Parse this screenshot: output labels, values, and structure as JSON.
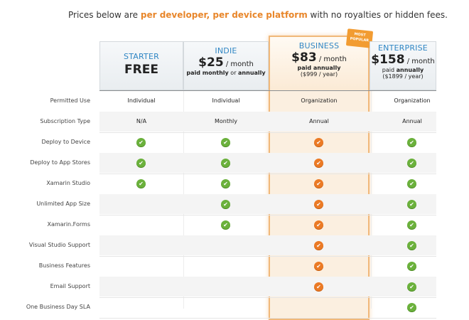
{
  "intro": {
    "pre": "Prices below are ",
    "highlight": "per developer, per device platform",
    "post": " with no royalties or hidden fees."
  },
  "plans": {
    "starter": {
      "name": "STARTER",
      "price": "FREE"
    },
    "indie": {
      "name": "INDIE",
      "price": "$25",
      "per": " / month",
      "billing_a": "paid monthly",
      "billing_or": " or ",
      "billing_b": "annually"
    },
    "business": {
      "name": "BUSINESS",
      "price": "$83",
      "per": " / month",
      "billing": "paid annually",
      "billing_sub": "($999 / year)",
      "ribbon": "MOST POPULAR"
    },
    "enterprise": {
      "name": "ENTERPRISE",
      "price": "$158",
      "per": " / month",
      "billing_pre": "paid ",
      "billing_b": "annually",
      "billing_sub": "($1899 / year)"
    }
  },
  "rows": [
    {
      "label": "Permitted Use",
      "starter": "Individual",
      "indie": "Individual",
      "business": "Organization",
      "enterprise": "Organization"
    },
    {
      "label": "Subscription Type",
      "starter": "N/A",
      "indie": "Monthly",
      "business": "Annual",
      "enterprise": "Annual"
    },
    {
      "label": "Deploy to Device",
      "starter": true,
      "indie": true,
      "business": true,
      "enterprise": true
    },
    {
      "label": "Deploy to App Stores",
      "starter": true,
      "indie": true,
      "business": true,
      "enterprise": true
    },
    {
      "label": "Xamarin Studio",
      "starter": true,
      "indie": true,
      "business": true,
      "enterprise": true
    },
    {
      "label": "Unlimited App Size",
      "starter": false,
      "indie": true,
      "business": true,
      "enterprise": true
    },
    {
      "label": "Xamarin.Forms",
      "starter": false,
      "indie": true,
      "business": true,
      "enterprise": true
    },
    {
      "label": "Visual Studio Support",
      "starter": false,
      "indie": false,
      "business": true,
      "enterprise": true
    },
    {
      "label": "Business Features",
      "starter": false,
      "indie": false,
      "business": true,
      "enterprise": true
    },
    {
      "label": "Email Support",
      "starter": false,
      "indie": false,
      "business": true,
      "enterprise": true
    },
    {
      "label": "One Business Day SLA",
      "starter": false,
      "indie": false,
      "business": false,
      "enterprise": true
    }
  ],
  "icons": {
    "check": "checkmark-icon"
  },
  "colors": {
    "accent": "#e8862a",
    "check_green": "#6bb13c",
    "check_orange": "#eb7a25",
    "plan_blue": "#2f86c4"
  }
}
